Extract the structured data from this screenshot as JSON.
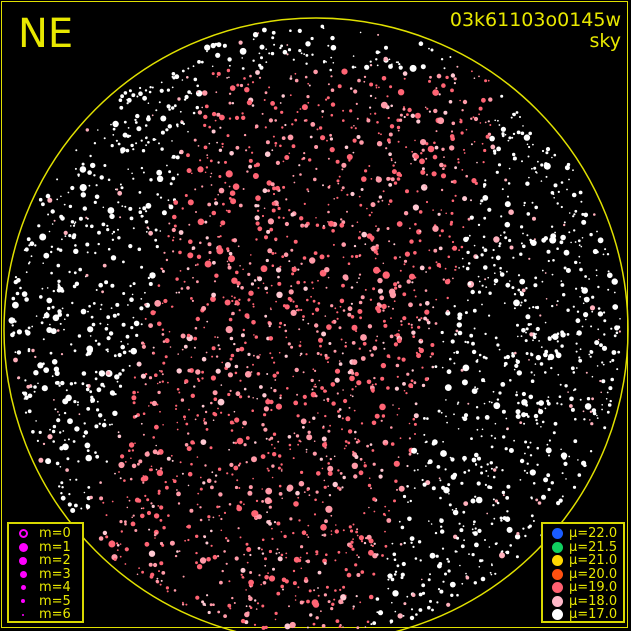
{
  "header": {
    "direction": "NE",
    "observation_id": "03k61103o0145w",
    "filter": "sky"
  },
  "magnitude_legend": [
    {
      "label": "m=0",
      "size": 9,
      "hollow": true
    },
    {
      "label": "m=1",
      "size": 9
    },
    {
      "label": "m=2",
      "size": 8
    },
    {
      "label": "m=3",
      "size": 7
    },
    {
      "label": "m=4",
      "size": 5
    },
    {
      "label": "m=5",
      "size": 4
    },
    {
      "label": "m=6",
      "size": 2
    }
  ],
  "surface_brightness_legend": [
    {
      "label": "μ=22.0",
      "color": "#1a5cff"
    },
    {
      "label": "μ=21.5",
      "color": "#10d060"
    },
    {
      "label": "μ=21.0",
      "color": "#ffd800"
    },
    {
      "label": "μ=20.0",
      "color": "#ff5010"
    },
    {
      "label": "μ=19.0",
      "color": "#ff6070"
    },
    {
      "label": "μ=18.0",
      "color": "#ffb8c8"
    },
    {
      "label": "μ=17.0",
      "color": "#ffffff"
    }
  ],
  "colors": {
    "frame": "#e0e000",
    "legend_marker": "#ff00ff",
    "star_default": "#ffffff",
    "star_bright_sky": "#ff6a78"
  }
}
